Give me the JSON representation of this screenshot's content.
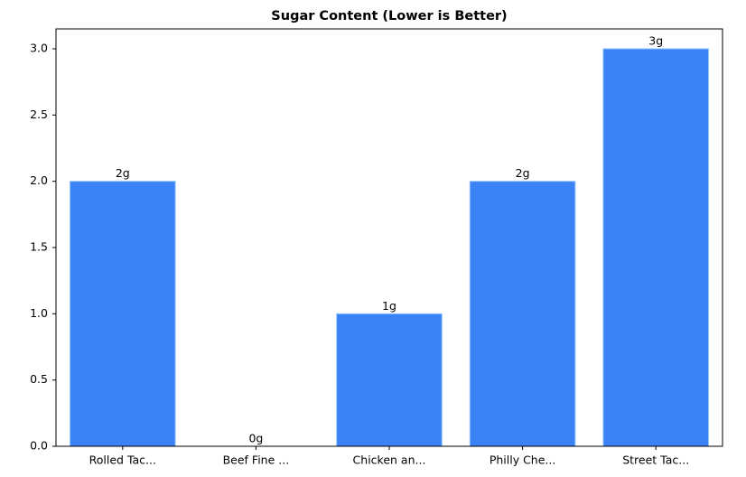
{
  "chart_data": {
    "type": "bar",
    "title": "Sugar Content (Lower is Better)",
    "categories": [
      "Rolled Tac...",
      "Beef Fine ...",
      "Chicken an...",
      "Philly Che...",
      "Street Tac..."
    ],
    "values": [
      2,
      0,
      1,
      2,
      3
    ],
    "value_labels": [
      "2g",
      "0g",
      "1g",
      "2g",
      "3g"
    ],
    "color": "#3b82f6",
    "ylim": [
      0,
      3.15
    ],
    "yticks": [
      {
        "value": 0,
        "label": "0.0"
      },
      0.5,
      {
        "value": 1,
        "label": "1.0"
      },
      1.5,
      {
        "value": 2,
        "label": "2.0"
      },
      2.5,
      {
        "value": 3,
        "label": "3.0"
      }
    ],
    "grid": false
  }
}
